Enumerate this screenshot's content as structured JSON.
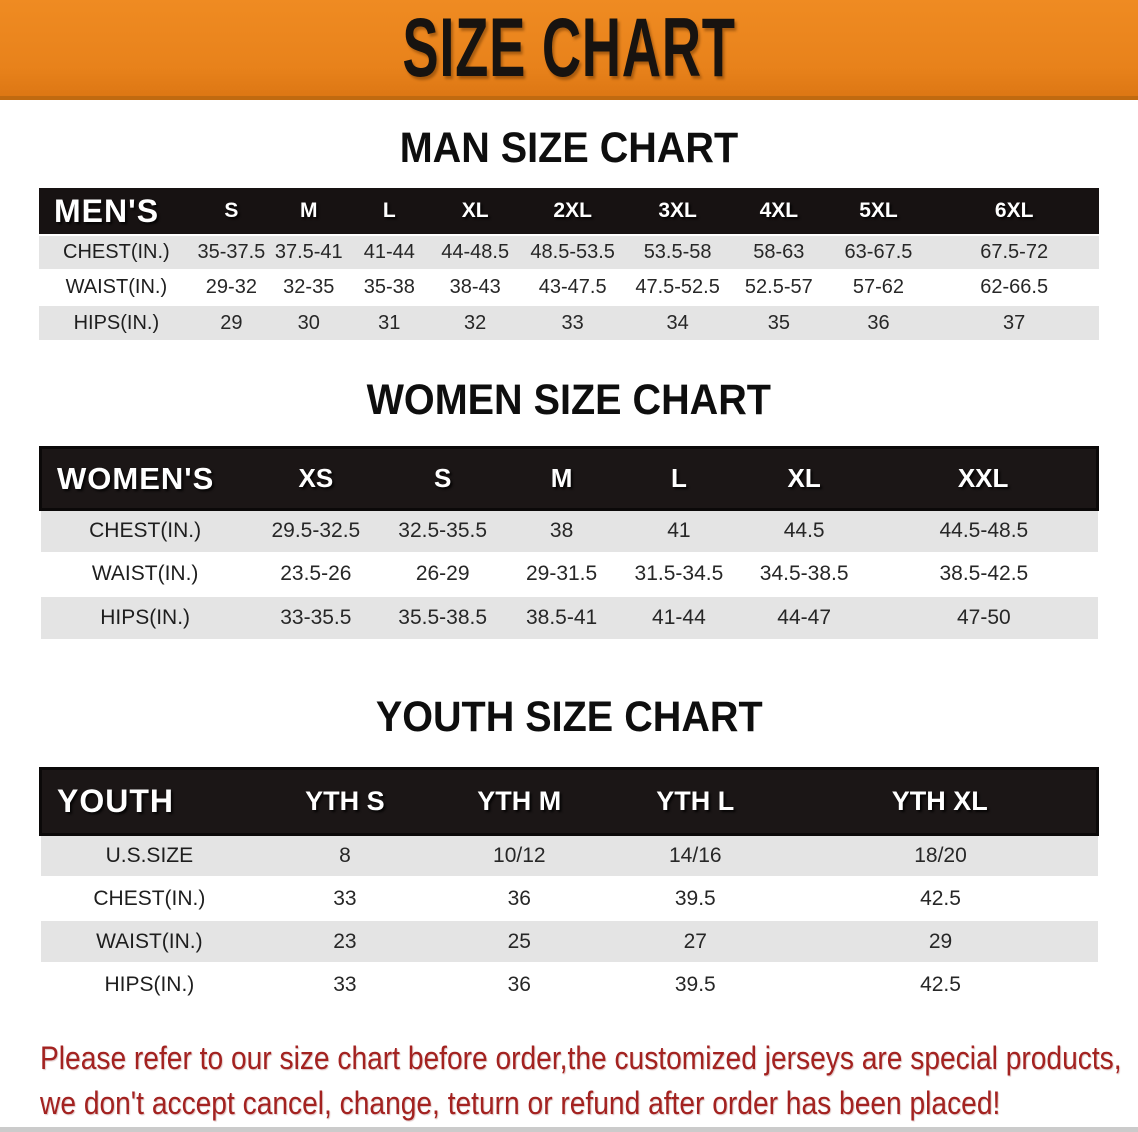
{
  "banner": {
    "title": "SIZE CHART",
    "background_color": "#E8821B",
    "text_color": "#171310"
  },
  "sections": {
    "man": {
      "title": "MAN SIZE CHART"
    },
    "women": {
      "title": "WOMEN SIZE CHART"
    },
    "youth": {
      "title": "YOUTH SIZE CHART"
    }
  },
  "tables": {
    "men": {
      "label": "MEN'S",
      "sizes": [
        "S",
        "M",
        "L",
        "XL",
        "2XL",
        "3XL",
        "4XL",
        "5XL",
        "6XL"
      ],
      "rows": [
        {
          "label": "CHEST(IN.)",
          "values": [
            "35-37.5",
            "37.5-41",
            "41-44",
            "44-48.5",
            "48.5-53.5",
            "53.5-58",
            "58-63",
            "63-67.5",
            "67.5-72"
          ]
        },
        {
          "label": "WAIST(IN.)",
          "values": [
            "29-32",
            "32-35",
            "35-38",
            "38-43",
            "43-47.5",
            "47.5-52.5",
            "52.5-57",
            "57-62",
            "62-66.5"
          ]
        },
        {
          "label": "HIPS(IN.)",
          "values": [
            "29",
            "30",
            "31",
            "32",
            "33",
            "34",
            "35",
            "36",
            "37"
          ]
        }
      ]
    },
    "women": {
      "label": "WOMEN'S",
      "sizes": [
        "XS",
        "S",
        "M",
        "L",
        "XL",
        "XXL"
      ],
      "rows": [
        {
          "label": "CHEST(IN.)",
          "values": [
            "29.5-32.5",
            "32.5-35.5",
            "38",
            "41",
            "44.5",
            "44.5-48.5"
          ]
        },
        {
          "label": "WAIST(IN.)",
          "values": [
            "23.5-26",
            "26-29",
            "29-31.5",
            "31.5-34.5",
            "34.5-38.5",
            "38.5-42.5"
          ]
        },
        {
          "label": "HIPS(IN.)",
          "values": [
            "33-35.5",
            "35.5-38.5",
            "38.5-41",
            "41-44",
            "44-47",
            "47-50"
          ]
        }
      ]
    },
    "youth": {
      "label": "YOUTH",
      "sizes": [
        "YTH S",
        "YTH M",
        "YTH L",
        "YTH XL"
      ],
      "rows": [
        {
          "label": "U.S.SIZE",
          "values": [
            "8",
            "10/12",
            "14/16",
            "18/20"
          ]
        },
        {
          "label": "CHEST(IN.)",
          "values": [
            "33",
            "36",
            "39.5",
            "42.5"
          ]
        },
        {
          "label": "WAIST(IN.)",
          "values": [
            "23",
            "25",
            "27",
            "29"
          ]
        },
        {
          "label": "HIPS(IN.)",
          "values": [
            "33",
            "36",
            "39.5",
            "42.5"
          ]
        }
      ]
    }
  },
  "table_colors": {
    "header_band": "#171212",
    "row_alt": "#E4E4E4",
    "row_base": "#FFFFFF"
  },
  "disclaimer": {
    "line1": "Please refer to our size chart before order,the customized jerseys are special products,",
    "line2": "we don't accept cancel, change, teturn or refund after order has been placed!",
    "color": "#A32220"
  }
}
